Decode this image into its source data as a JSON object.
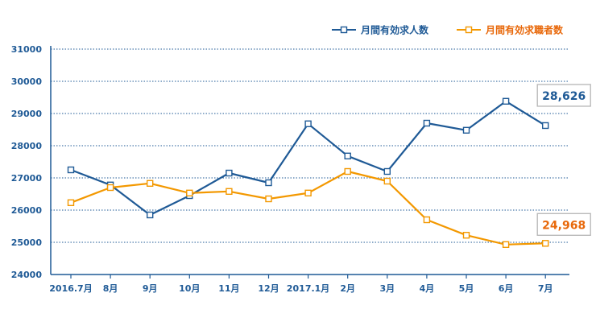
{
  "chart_data": {
    "type": "line",
    "categories": [
      "2016.7月",
      "8月",
      "9月",
      "10月",
      "11月",
      "12月",
      "2017.1月",
      "2月",
      "3月",
      "4月",
      "5月",
      "6月",
      "7月"
    ],
    "ylim": [
      24000,
      31000
    ],
    "yticks": [
      24000,
      25000,
      26000,
      27000,
      28000,
      29000,
      30000,
      31000
    ],
    "grid": true,
    "legend_position": "top-right",
    "series": [
      {
        "name": "月間有効求人数",
        "color": "#1f5a96",
        "values": [
          27250,
          26780,
          25850,
          26450,
          27150,
          26850,
          28680,
          27680,
          27200,
          28700,
          28480,
          29380,
          28626
        ]
      },
      {
        "name": "月間有効求職者数",
        "color": "#f39800",
        "values": [
          26230,
          26700,
          26830,
          26530,
          26580,
          26350,
          26530,
          27200,
          26900,
          25700,
          25220,
          24930,
          24968
        ]
      }
    ],
    "annotations": [
      {
        "series": 0,
        "index": 12,
        "text": "28,626",
        "color": "#1f5a96"
      },
      {
        "series": 1,
        "index": 12,
        "text": "24,968",
        "color": "#e8680a"
      }
    ]
  }
}
